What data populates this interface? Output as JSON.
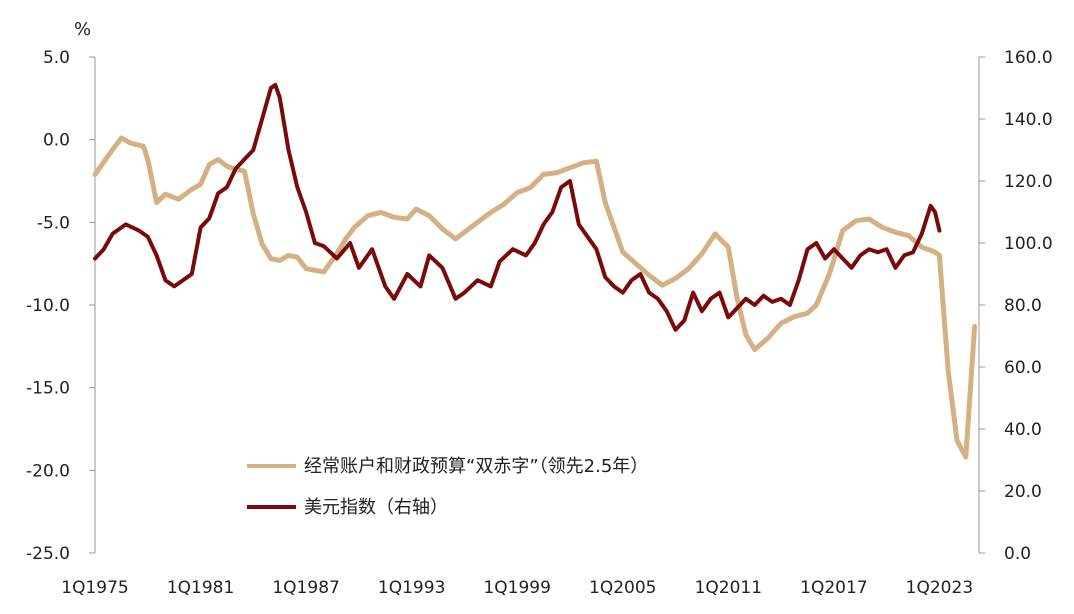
{
  "chart_data": {
    "type": "line",
    "unit_label": "%",
    "x_ticks": [
      "1Q1975",
      "1Q1981",
      "1Q1987",
      "1Q1993",
      "1Q1999",
      "1Q2005",
      "1Q2011",
      "1Q2017",
      "1Q2023"
    ],
    "y_left_ticks": [
      "5.0",
      "0.0",
      "-5.0",
      "-10.0",
      "-15.0",
      "-20.0",
      "-25.0"
    ],
    "y_right_ticks": [
      "160.0",
      "140.0",
      "120.0",
      "100.0",
      "80.0",
      "60.0",
      "40.0",
      "20.0",
      "0.0"
    ],
    "y_left_lim": [
      -25,
      5
    ],
    "y_right_lim": [
      0,
      160
    ],
    "x_lim": [
      1975,
      2025.25
    ],
    "legend_position": "bottom-center",
    "series": [
      {
        "name": "经常账户和财政预算“双赤字”（领先2.5年）",
        "axis": "left",
        "color": "#D4B183",
        "x": [
          1975.0,
          1976.0,
          1976.5,
          1977.0,
          1977.75,
          1978.0,
          1978.5,
          1979.0,
          1979.75,
          1980.5,
          1981.0,
          1981.5,
          1982.0,
          1982.5,
          1983.0,
          1983.5,
          1984.0,
          1984.5,
          1985.0,
          1985.5,
          1986.0,
          1986.5,
          1987.0,
          1987.5,
          1988.0,
          1988.75,
          1989.25,
          1989.75,
          1990.5,
          1991.25,
          1992.0,
          1992.75,
          1993.25,
          1994.0,
          1994.75,
          1995.5,
          1996.0,
          1996.75,
          1997.5,
          1998.25,
          1999.0,
          1999.75,
          2000.5,
          2001.25,
          2002.0,
          2002.75,
          2003.5,
          2004.0,
          2004.5,
          2005.0,
          2005.75,
          2006.5,
          2007.25,
          2008.0,
          2008.75,
          2009.5,
          2010.25,
          2011.0,
          2011.5,
          2012.0,
          2012.5,
          2013.25,
          2014.0,
          2014.75,
          2015.5,
          2016.0,
          2016.75,
          2017.5,
          2018.25,
          2019.0,
          2019.75,
          2020.5,
          2021.25,
          2022.0,
          2022.5,
          2022.75,
          2023.0,
          2023.5,
          2024.0,
          2024.5,
          2025.0
        ],
        "values": [
          -2.1,
          -0.6,
          0.1,
          -0.2,
          -0.4,
          -1.2,
          -3.8,
          -3.3,
          -3.6,
          -3.0,
          -2.7,
          -1.5,
          -1.2,
          -1.6,
          -1.8,
          -1.9,
          -4.5,
          -6.3,
          -7.2,
          -7.3,
          -7.0,
          -7.1,
          -7.8,
          -7.9,
          -8.0,
          -6.9,
          -6.0,
          -5.3,
          -4.6,
          -4.4,
          -4.7,
          -4.8,
          -4.2,
          -4.6,
          -5.4,
          -6.0,
          -5.6,
          -5.0,
          -4.4,
          -3.9,
          -3.2,
          -2.9,
          -2.1,
          -2.0,
          -1.7,
          -1.4,
          -1.3,
          -3.8,
          -5.3,
          -6.8,
          -7.5,
          -8.2,
          -8.8,
          -8.4,
          -7.8,
          -6.9,
          -5.7,
          -6.5,
          -9.6,
          -11.8,
          -12.7,
          -12.0,
          -11.1,
          -10.7,
          -10.5,
          -10.0,
          -8.1,
          -5.5,
          -4.9,
          -4.8,
          -5.3,
          -5.6,
          -5.8,
          -6.5,
          -6.7,
          -6.8,
          -7.0,
          -14.0,
          -18.2,
          -19.2,
          -11.3
        ]
      },
      {
        "name": "美元指数（右轴）",
        "axis": "right",
        "color": "#7A0A0A",
        "x": [
          1975.0,
          1975.5,
          1976.0,
          1976.75,
          1977.5,
          1978.0,
          1978.5,
          1979.0,
          1979.5,
          1980.0,
          1980.5,
          1981.0,
          1981.5,
          1982.0,
          1982.5,
          1983.0,
          1983.5,
          1984.0,
          1984.5,
          1985.0,
          1985.25,
          1985.5,
          1986.0,
          1986.5,
          1987.0,
          1987.5,
          1988.0,
          1988.75,
          1989.5,
          1990.0,
          1990.75,
          1991.5,
          1992.0,
          1992.75,
          1993.5,
          1994.0,
          1994.75,
          1995.5,
          1996.0,
          1996.75,
          1997.5,
          1998.0,
          1998.75,
          1999.5,
          2000.0,
          2000.5,
          2001.0,
          2001.5,
          2002.0,
          2002.5,
          2003.0,
          2003.5,
          2004.0,
          2004.5,
          2005.0,
          2005.5,
          2006.0,
          2006.5,
          2007.0,
          2007.5,
          2008.0,
          2008.5,
          2009.0,
          2009.5,
          2010.0,
          2010.5,
          2011.0,
          2011.5,
          2012.0,
          2012.5,
          2013.0,
          2013.5,
          2014.0,
          2014.5,
          2015.0,
          2015.5,
          2016.0,
          2016.5,
          2017.0,
          2017.5,
          2018.0,
          2018.5,
          2019.0,
          2019.5,
          2020.0,
          2020.5,
          2021.0,
          2021.5,
          2022.0,
          2022.5,
          2022.75,
          2023.0
        ],
        "values": [
          95,
          98,
          103,
          106,
          104,
          102,
          96,
          88,
          86,
          88,
          90,
          105,
          108,
          116,
          118,
          124,
          127,
          130,
          140,
          150,
          151,
          147,
          130,
          118,
          110,
          100,
          99,
          95,
          100,
          92,
          98,
          86,
          82,
          90,
          86,
          96,
          92,
          82,
          84,
          88,
          86,
          94,
          98,
          96,
          100,
          106,
          110,
          118,
          120,
          106,
          102,
          98,
          89,
          86,
          84,
          88,
          90,
          84,
          82,
          78,
          72,
          75,
          84,
          78,
          82,
          84,
          76,
          79,
          82,
          80,
          83,
          81,
          82,
          80,
          88,
          98,
          100,
          95,
          98,
          95,
          92,
          96,
          98,
          97,
          98,
          92,
          96,
          97,
          103,
          112,
          110,
          104
        ]
      }
    ]
  }
}
